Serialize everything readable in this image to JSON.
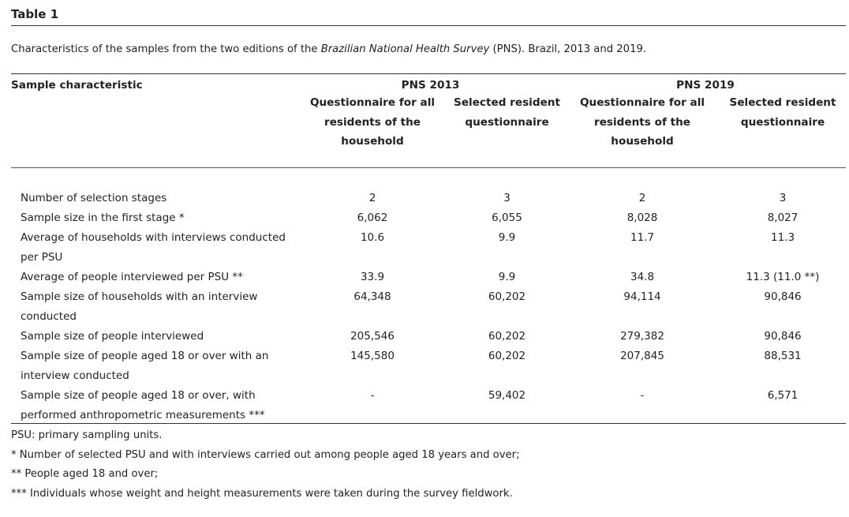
{
  "title": "Table 1",
  "caption": {
    "before": "Characteristics of the samples from the two editions of the ",
    "italic": "Brazilian National Health Survey",
    "after": " (PNS). Brazil, 2013 and 2019."
  },
  "header": {
    "row_label": "Sample characteristic",
    "groups": [
      "PNS 2013",
      "PNS 2019"
    ],
    "subcolumns": [
      "Questionnaire for all residents of the household",
      "Selected resident questionnaire",
      "Questionnaire for all residents of the household",
      "Selected resident questionnaire"
    ]
  },
  "rows": [
    {
      "label": "Number of selection stages",
      "values": [
        "2",
        "3",
        "2",
        "3"
      ]
    },
    {
      "label": "Sample size in the first stage *",
      "values": [
        "6,062",
        "6,055",
        "8,028",
        "8,027"
      ]
    },
    {
      "label": "Average of households with interviews conducted per PSU",
      "values": [
        "10.6",
        "9.9",
        "11.7",
        "11.3"
      ]
    },
    {
      "label": "Average of people interviewed per PSU **",
      "values": [
        "33.9",
        "9.9",
        "34.8",
        "11.3 (11.0 **)"
      ]
    },
    {
      "label": "Sample size of households with an interview conducted",
      "values": [
        "64,348",
        "60,202",
        "94,114",
        "90,846"
      ]
    },
    {
      "label": "Sample size of people interviewed",
      "values": [
        "205,546",
        "60,202",
        "279,382",
        "90,846"
      ]
    },
    {
      "label": "Sample size of people aged 18 or over with an interview conducted",
      "values": [
        "145,580",
        "60,202",
        "207,845",
        "88,531"
      ]
    },
    {
      "label": "Sample size of people aged 18 or over, with performed anthropometric measurements ***",
      "values": [
        "-",
        "59,402",
        "-",
        "6,571"
      ]
    }
  ],
  "notes": [
    "PSU: primary sampling units.",
    "* Number of selected PSU and with interviews carried out among people aged 18 years and over;",
    "** People aged 18 and over;",
    "*** Individuals whose weight and height measurements were taken during the survey fieldwork."
  ]
}
